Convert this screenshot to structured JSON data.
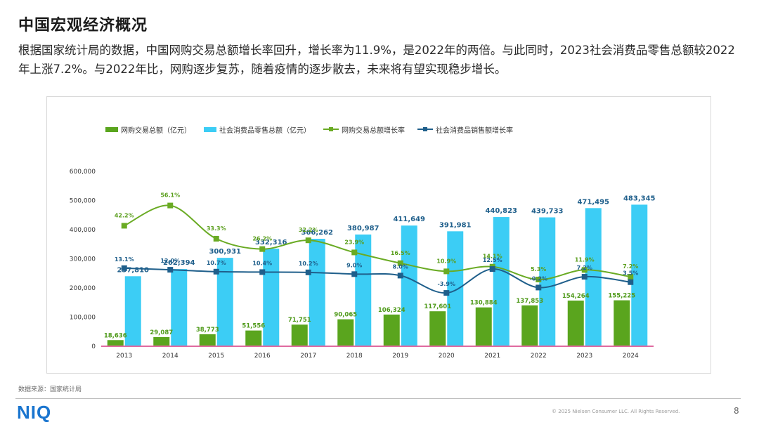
{
  "page": {
    "title": "中国宏观经济概况",
    "subtitle": "根据国家统计局的数据，中国网购交易总额增长率回升，增长率为11.9%，是2022年的两倍。与此同时，2023社会消费品零售总额较2022年上涨7.2%。与2022年比，网购逐步复苏，随着疫情的逐步散去，未来将有望实现稳步增长。",
    "source": "数据来源：国家统计局",
    "logo": "NIQ",
    "copyright": "© 2025 Nielsen Consumer LLC. All Rights Reserved.",
    "page_number": "8"
  },
  "legend": [
    {
      "label": "网购交易总额（亿元）",
      "kind": "bar",
      "color": "#5aa51e"
    },
    {
      "label": "社会消费品零售总额（亿元）",
      "kind": "bar",
      "color": "#3ccdf5"
    },
    {
      "label": "网购交易总额增长率",
      "kind": "line",
      "color": "#6aab24"
    },
    {
      "label": "社会消费品销售额增长率",
      "kind": "line",
      "color": "#1f5f8b"
    }
  ],
  "chart_data": {
    "type": "bar",
    "title": "",
    "xlabel": "",
    "ylabel": "",
    "ylim": [
      0,
      600000
    ],
    "yticks": [
      0,
      100000,
      200000,
      300000,
      400000,
      500000,
      600000
    ],
    "ytick_labels": [
      "0",
      "100,000",
      "200,000",
      "300,000",
      "400,000",
      "500,000",
      "600,000"
    ],
    "categories": [
      "2013",
      "2014",
      "2015",
      "2016",
      "2017",
      "2018",
      "2019",
      "2020",
      "2021",
      "2022",
      "2023",
      "2024"
    ],
    "series": [
      {
        "name": "网购交易总额（亿元）",
        "type": "bar",
        "color": "#5aa51e",
        "label_color": "#4f9a1a",
        "values": [
          18636,
          29087,
          38773,
          51556,
          71751,
          90065,
          106324,
          117601,
          130884,
          137853,
          154264,
          155225
        ],
        "labels": [
          "18,636",
          "29,087",
          "38,773",
          "51,556",
          "71,751",
          "90,065",
          "106,324",
          "117,601",
          "130,884",
          "137,853",
          "154,264",
          "155,225"
        ]
      },
      {
        "name": "社会消费品零售总额（亿元）",
        "type": "bar",
        "color": "#3ccdf5",
        "label_color": "#1f5f8b",
        "values": [
          237810,
          262394,
          300931,
          332316,
          366262,
          380987,
          411649,
          391981,
          440823,
          439733,
          471495,
          483345
        ],
        "labels": [
          "237,810",
          "262,394",
          "300,931",
          "332,316",
          "366,262",
          "380,987",
          "411,649",
          "391,981",
          "440,823",
          "439,733",
          "471,495",
          "483,345"
        ]
      },
      {
        "name": "网购交易总额增长率",
        "type": "line",
        "color": "#6aab24",
        "label_color": "#5a9e1c",
        "values": [
          42.2,
          56.1,
          33.3,
          26.2,
          32.2,
          23.9,
          16.5,
          10.9,
          14.1,
          5.3,
          11.9,
          7.2
        ],
        "labels": [
          "42.2%",
          "56.1%",
          "33.3%",
          "26.2%",
          "32.2%",
          "23.9%",
          "16.5%",
          "10.9%",
          "14.1%",
          "5.3%",
          "11.9%",
          "7.2%"
        ],
        "axis_note": "growth rate curve plotted on a secondary scale"
      },
      {
        "name": "社会消费品销售额增长率",
        "type": "line",
        "color": "#1f5f8b",
        "label_color": "#1f5f8b",
        "values": [
          13.1,
          12.0,
          10.7,
          10.4,
          10.2,
          9.0,
          8.0,
          -3.9,
          12.5,
          -0.2,
          7.2,
          3.5
        ],
        "labels": [
          "13.1%",
          "12.0%",
          "10.7%",
          "10.4%",
          "10.2%",
          "9.0%",
          "8.0%",
          "-3.9%",
          "12.5%",
          "-0.2%",
          "7.2%",
          "3.5%"
        ]
      }
    ],
    "grid": false,
    "legend_position": "top-left"
  }
}
